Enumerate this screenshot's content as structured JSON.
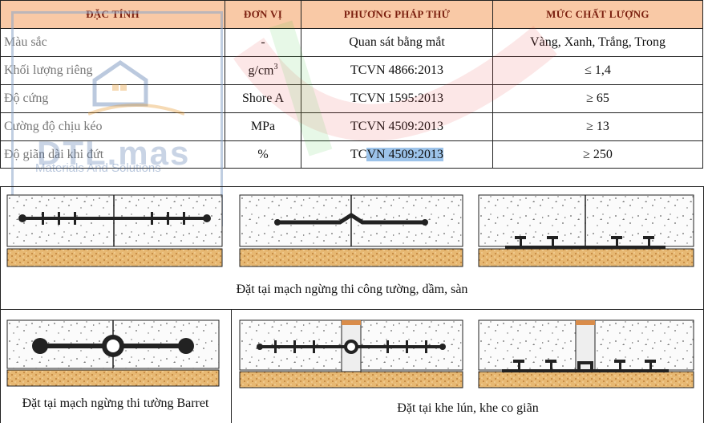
{
  "table": {
    "headers": [
      "ĐẶC TÍNH",
      "ĐƠN VỊ",
      "PHƯƠNG PHÁP THỬ",
      "MỨC CHẤT LƯỢNG"
    ],
    "rows": [
      {
        "property": "Màu sắc",
        "unit": "-",
        "unit_sup": "",
        "method": "Quan sát bằng mắt",
        "value": "Vàng, Xanh, Trắng, Trong"
      },
      {
        "property": "Khối lượng riêng",
        "unit": "g/cm",
        "unit_sup": "3",
        "method": "TCVN 4866:2013",
        "value": "≤ 1,4"
      },
      {
        "property": "Độ cứng",
        "unit": "Shore A",
        "unit_sup": "",
        "method": "TCVN 1595:2013",
        "value": "≥ 65"
      },
      {
        "property": "Cường độ chịu kéo",
        "unit": "MPa",
        "unit_sup": "",
        "method": "TCVN 4509:2013",
        "value": "≥ 13"
      },
      {
        "property": "Độ giãn dài khi đứt",
        "unit": "%",
        "unit_sup": "",
        "method_prefix": "TC",
        "method_highlight": "VN 4509:2013",
        "value": "≥ 250"
      }
    ]
  },
  "watermark": {
    "logo": "DTL.mas",
    "tagline": "Materials And Solutions"
  },
  "captions": {
    "row1": "Đặt tại mạch ngừng thi công tường, dầm, sàn",
    "barret": "Đặt tại mạch ngừng thi tường Barret",
    "expansion": "Đặt tại khe lún, khe co giãn"
  },
  "colors": {
    "header_bg": "#f9c9a6",
    "header_text": "#7a1f0f",
    "sand": "#e9b36a",
    "highlight": "#9cc3ea"
  },
  "icons": [
    "house-logo-icon",
    "waterstop-diagram"
  ]
}
